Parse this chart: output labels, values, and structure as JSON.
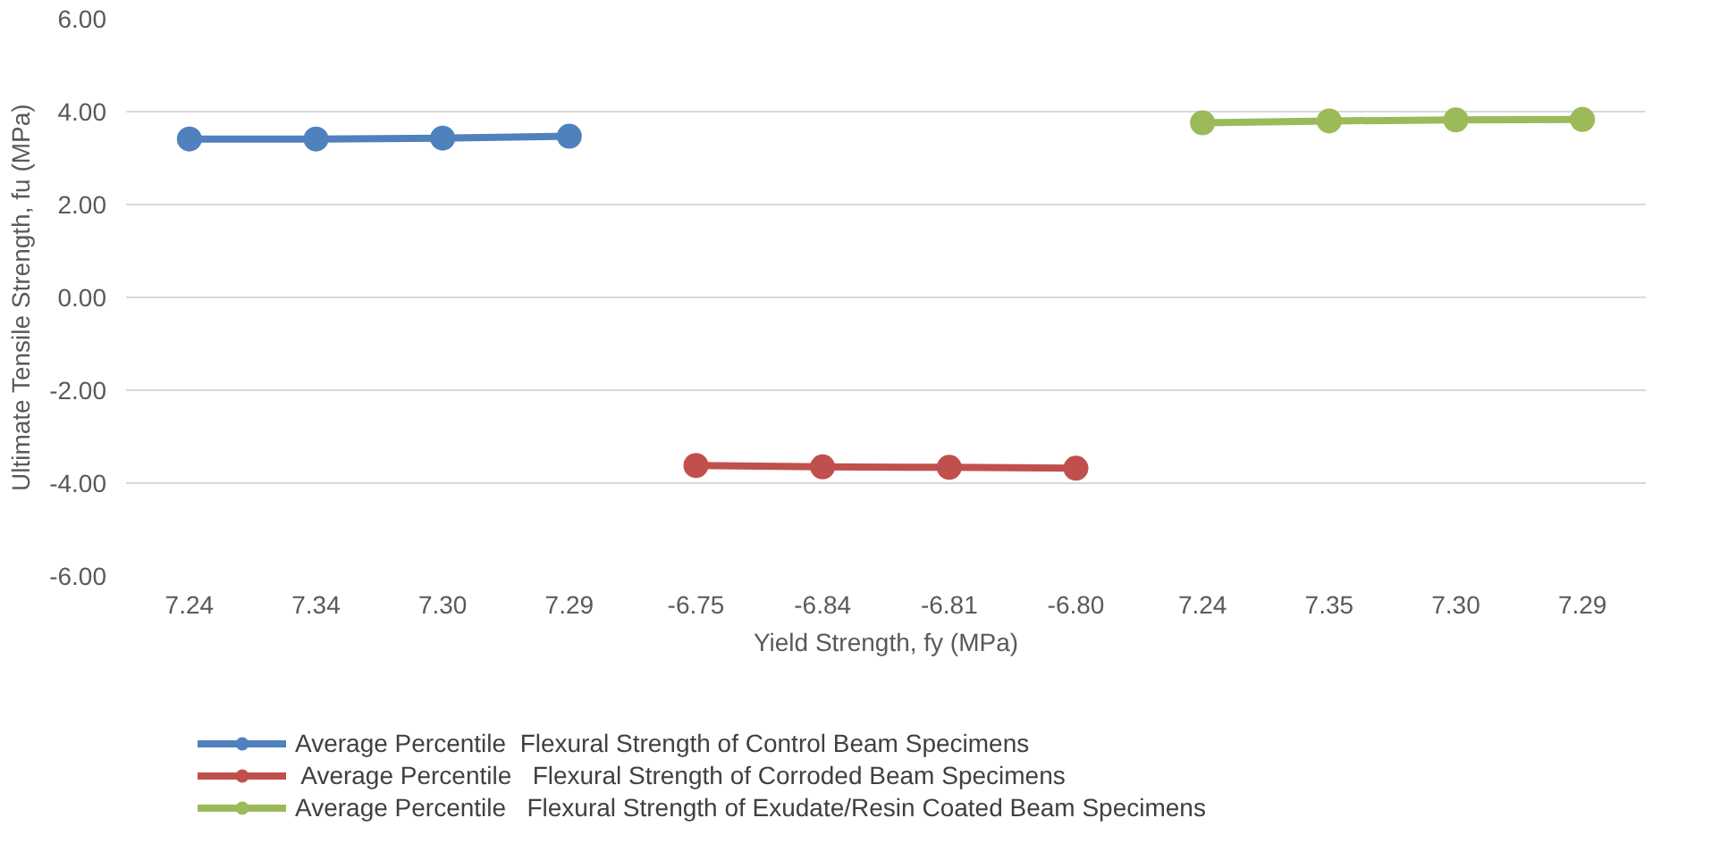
{
  "chart_data": {
    "type": "line",
    "xlabel": "Yield Strength, fy (MPa)",
    "ylabel": "Ultimate Tensile Strength, fu (MPa)",
    "categories": [
      "7.24",
      "7.34",
      "7.30",
      "7.29",
      "-6.75",
      "-6.84",
      "-6.81",
      "-6.80",
      "7.24",
      "7.35",
      "7.30",
      "7.29"
    ],
    "ylim": [
      -6,
      6
    ],
    "yticks": [
      {
        "value": -6,
        "label": "-6.00"
      },
      {
        "value": -4,
        "label": "-4.00"
      },
      {
        "value": -2,
        "label": "-2.00"
      },
      {
        "value": 0,
        "label": "0.00"
      },
      {
        "value": 2,
        "label": "2.00"
      },
      {
        "value": 4,
        "label": "4.00"
      },
      {
        "value": 6,
        "label": "6.00"
      }
    ],
    "grid": "y",
    "legend": "bottom",
    "marker": "circle",
    "line_style": "solid",
    "series": [
      {
        "name": "Average Percentile  Flexural Strength of Control Beam Specimens",
        "color": "#4f81bd",
        "values": [
          3.41,
          3.41,
          3.43,
          3.47,
          null,
          null,
          null,
          null,
          null,
          null,
          null,
          null
        ]
      },
      {
        "name": " Average Percentile   Flexural Strength of Corroded Beam Specimens",
        "color": "#c0504d",
        "values": [
          null,
          null,
          null,
          null,
          -3.62,
          -3.65,
          -3.66,
          -3.68,
          null,
          null,
          null,
          null
        ]
      },
      {
        "name": "Average Percentile   Flexural Strength of Exudate/Resin Coated Beam Specimens",
        "color": "#9bbb59",
        "values": [
          null,
          null,
          null,
          null,
          null,
          null,
          null,
          null,
          3.76,
          3.8,
          3.82,
          3.83
        ]
      }
    ]
  }
}
